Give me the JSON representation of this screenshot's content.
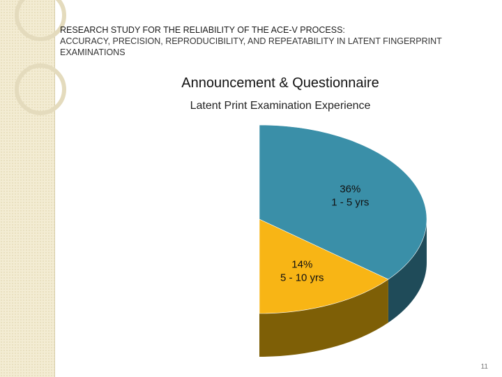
{
  "slide": {
    "title": "RESEARCH STUDY FOR THE RELIABILITY OF THE ACE-V PROCESS:",
    "subtitle": "ACCURACY, PRECISION, REPRODUCIBILITY, AND REPEATABILITY IN LATENT FINGERPRINT EXAMINATIONS",
    "heading": "Announcement & Questionnaire",
    "page_number": "11"
  },
  "colors": {
    "slice_1_top": "#3a8fa8",
    "slice_1_side": "#1f4b59",
    "slice_2_top": "#f8b515",
    "slice_2_side": "#7e5f06"
  },
  "chart_data": {
    "type": "pie",
    "title": "Latent Print Examination Experience",
    "style": "3d-partial-pie",
    "slices": [
      {
        "percent_label": "36%",
        "category": "1 - 5 yrs",
        "value": 36
      },
      {
        "percent_label": "14%",
        "category": "5 - 10 yrs",
        "value": 14
      }
    ]
  }
}
